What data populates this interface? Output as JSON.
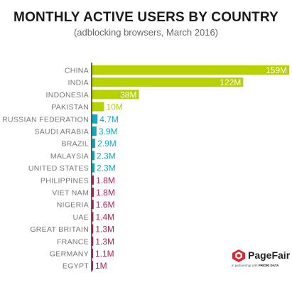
{
  "header": {
    "title": "MONTHLY ACTIVE USERS BY COUNTRY",
    "subtitle": "(adblocking browsers, March 2016)"
  },
  "logo": {
    "name": "PageFair",
    "tagline": "in partnership with",
    "partner": "PRIORI DATA"
  },
  "colors": {
    "green": "#b5d200",
    "teal": "#14a9c0",
    "crimson": "#b0245a",
    "axis": "#333333"
  },
  "chart_data": {
    "type": "bar",
    "orientation": "horizontal",
    "title": "MONTHLY ACTIVE USERS BY COUNTRY",
    "subtitle": "(adblocking browsers, March 2016)",
    "categories": [
      "CHINA",
      "INDIA",
      "INDONESIA",
      "PAKISTAN",
      "RUSSIAN FEDERATION",
      "SAUDI ARABIA",
      "BRAZIL",
      "MALAYSIA",
      "UNITED STATES",
      "PHILIPPINES",
      "VIET NAM",
      "NIGERIA",
      "UAE",
      "GREAT BRITAIN",
      "FRANCE",
      "GERMANY",
      "EGYPT"
    ],
    "values": [
      159,
      122,
      38,
      10,
      4.7,
      3.9,
      2.9,
      2.3,
      2.3,
      1.8,
      1.8,
      1.6,
      1.4,
      1.3,
      1.3,
      1.1,
      1.0
    ],
    "value_labels": [
      "159M",
      "122M",
      "38M",
      "10M",
      "4.7M",
      "3.9M",
      "2.9M",
      "2.3M",
      "2.3M",
      "1.8M",
      "1.8M",
      "1.6M",
      "1.4M",
      "1.3M",
      "1.3M",
      "1.1M",
      "1M"
    ],
    "bar_colors": [
      "green",
      "green",
      "green",
      "green",
      "teal",
      "teal",
      "teal",
      "teal",
      "teal",
      "crimson",
      "crimson",
      "crimson",
      "crimson",
      "crimson",
      "crimson",
      "crimson",
      "crimson"
    ],
    "xlim": [
      0,
      159
    ],
    "grid": false,
    "legend": "none"
  }
}
